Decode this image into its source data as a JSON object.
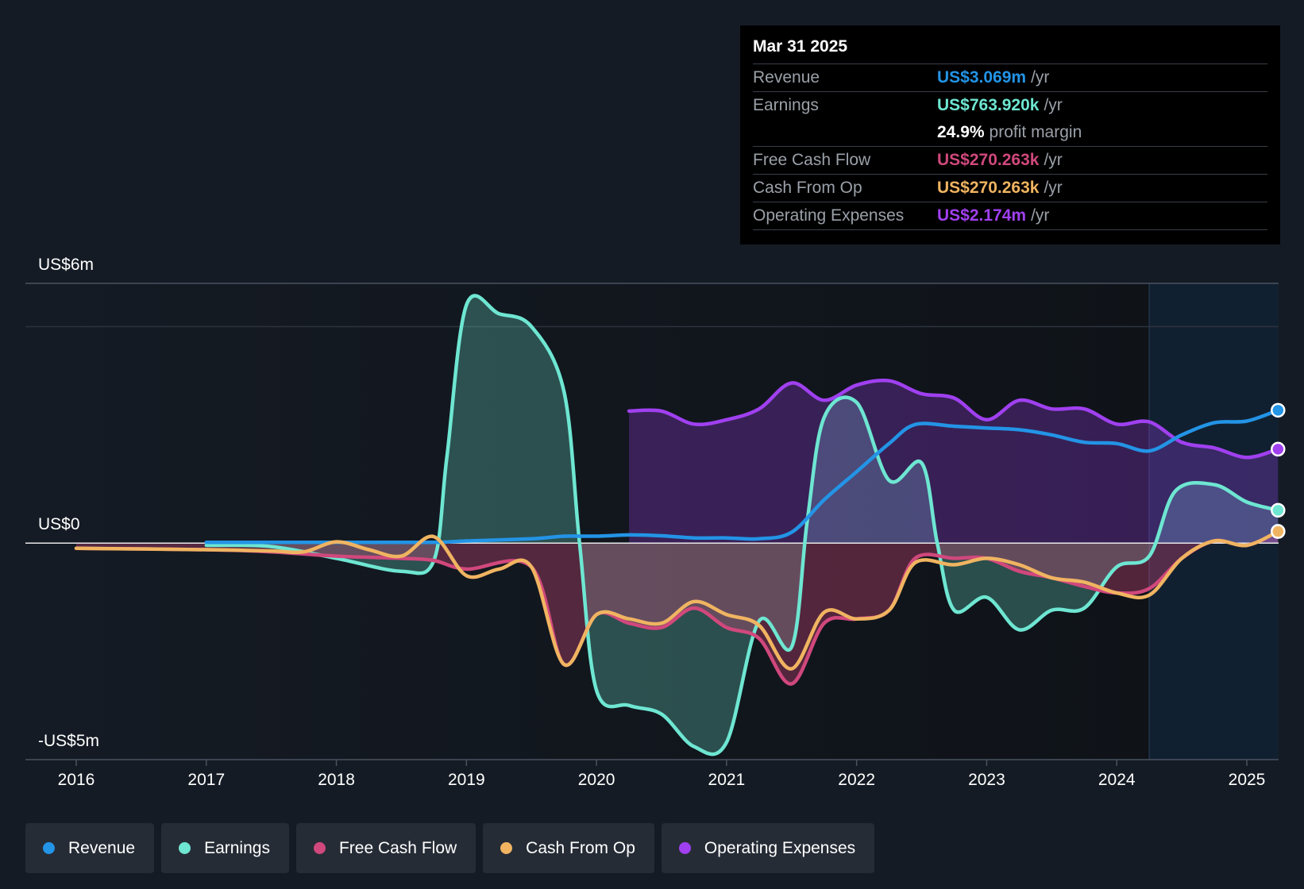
{
  "colors": {
    "revenue": "#2394e6",
    "earnings": "#6ee6d2",
    "free_cash_flow": "#d0487c",
    "cash_from_op": "#f0b461",
    "operating_expenses": "#a040f0",
    "background": "#151b24"
  },
  "tooltip": {
    "date": "Mar 31 2025",
    "rows": [
      {
        "label": "Revenue",
        "value": "US$3.069m",
        "unit": "/yr"
      },
      {
        "label": "Earnings",
        "value": "US$763.920k",
        "unit": "/yr"
      },
      {
        "label": "Free Cash Flow",
        "value": "US$270.263k",
        "unit": "/yr"
      },
      {
        "label": "Cash From Op",
        "value": "US$270.263k",
        "unit": "/yr"
      },
      {
        "label": "Operating Expenses",
        "value": "US$2.174m",
        "unit": "/yr"
      }
    ],
    "margin_value": "24.9%",
    "margin_label": "profit margin"
  },
  "legend": [
    {
      "label": "Revenue",
      "color": "#2394e6"
    },
    {
      "label": "Earnings",
      "color": "#6ee6d2"
    },
    {
      "label": "Free Cash Flow",
      "color": "#d0487c"
    },
    {
      "label": "Cash From Op",
      "color": "#f0b461"
    },
    {
      "label": "Operating Expenses",
      "color": "#a040f0"
    }
  ],
  "chart_data": {
    "type": "area",
    "x_label_ticks": [
      "2016",
      "2017",
      "2018",
      "2019",
      "2020",
      "2021",
      "2022",
      "2023",
      "2024",
      "2025"
    ],
    "y_labels": {
      "top": "US$6m",
      "zero": "US$0",
      "bottom": "-US$5m"
    },
    "ylim": [
      -5,
      6
    ],
    "xlim": [
      2015.62,
      2025.24
    ],
    "forecast_start": 2024.25,
    "series": [
      {
        "name": "Revenue",
        "key": "revenue",
        "color": "#2394e6",
        "fill": false,
        "points": [
          [
            2017,
            0.02
          ],
          [
            2018,
            0.02
          ],
          [
            2018.75,
            0.02
          ],
          [
            2019,
            0.05
          ],
          [
            2019.5,
            0.1
          ],
          [
            2019.75,
            0.16
          ],
          [
            2020,
            0.16
          ],
          [
            2020.25,
            0.19
          ],
          [
            2020.5,
            0.17
          ],
          [
            2020.75,
            0.12
          ],
          [
            2021,
            0.12
          ],
          [
            2021.25,
            0.1
          ],
          [
            2021.5,
            0.25
          ],
          [
            2021.75,
            1.0
          ],
          [
            2022,
            1.65
          ],
          [
            2022.25,
            2.3
          ],
          [
            2022.45,
            2.74
          ],
          [
            2022.75,
            2.7
          ],
          [
            2023,
            2.66
          ],
          [
            2023.25,
            2.62
          ],
          [
            2023.5,
            2.5
          ],
          [
            2023.75,
            2.33
          ],
          [
            2024,
            2.3
          ],
          [
            2024.25,
            2.13
          ],
          [
            2024.5,
            2.5
          ],
          [
            2024.75,
            2.78
          ],
          [
            2025,
            2.82
          ],
          [
            2025.24,
            3.07
          ]
        ]
      },
      {
        "name": "Earnings",
        "key": "earnings",
        "color": "#6ee6d2",
        "fill": true,
        "points": [
          [
            2017,
            -0.05
          ],
          [
            2017.5,
            -0.08
          ],
          [
            2018,
            -0.35
          ],
          [
            2018.5,
            -0.65
          ],
          [
            2018.75,
            -0.4
          ],
          [
            2018.85,
            2.0
          ],
          [
            2019,
            5.5
          ],
          [
            2019.25,
            5.3
          ],
          [
            2019.5,
            5.0
          ],
          [
            2019.75,
            3.5
          ],
          [
            2019.87,
            0.0
          ],
          [
            2020,
            -3.4
          ],
          [
            2020.25,
            -3.75
          ],
          [
            2020.5,
            -3.95
          ],
          [
            2020.75,
            -4.7
          ],
          [
            2021,
            -4.6
          ],
          [
            2021.25,
            -1.8
          ],
          [
            2021.5,
            -2.4
          ],
          [
            2021.62,
            0.5
          ],
          [
            2021.75,
            2.9
          ],
          [
            2022,
            3.25
          ],
          [
            2022.25,
            1.45
          ],
          [
            2022.5,
            1.85
          ],
          [
            2022.62,
            0.0
          ],
          [
            2022.75,
            -1.55
          ],
          [
            2023,
            -1.25
          ],
          [
            2023.25,
            -2.0
          ],
          [
            2023.5,
            -1.55
          ],
          [
            2023.75,
            -1.5
          ],
          [
            2024,
            -0.55
          ],
          [
            2024.25,
            -0.3
          ],
          [
            2024.45,
            1.2
          ],
          [
            2024.75,
            1.35
          ],
          [
            2025,
            0.95
          ],
          [
            2025.24,
            0.76
          ]
        ]
      },
      {
        "name": "Free Cash Flow",
        "key": "free_cash_flow",
        "color": "#d0487c",
        "fill": true,
        "points": [
          [
            2016,
            -0.12
          ],
          [
            2017,
            -0.15
          ],
          [
            2017.5,
            -0.2
          ],
          [
            2018,
            -0.3
          ],
          [
            2018.5,
            -0.35
          ],
          [
            2018.75,
            -0.4
          ],
          [
            2019,
            -0.6
          ],
          [
            2019.5,
            -0.55
          ],
          [
            2019.75,
            -2.8
          ],
          [
            2020,
            -1.65
          ],
          [
            2020.25,
            -1.85
          ],
          [
            2020.5,
            -1.95
          ],
          [
            2020.75,
            -1.5
          ],
          [
            2021,
            -1.95
          ],
          [
            2021.25,
            -2.2
          ],
          [
            2021.5,
            -3.25
          ],
          [
            2021.75,
            -1.85
          ],
          [
            2022,
            -1.75
          ],
          [
            2022.25,
            -1.55
          ],
          [
            2022.45,
            -0.35
          ],
          [
            2022.75,
            -0.35
          ],
          [
            2023,
            -0.35
          ],
          [
            2023.25,
            -0.65
          ],
          [
            2023.5,
            -0.8
          ],
          [
            2023.75,
            -1.0
          ],
          [
            2024,
            -1.15
          ],
          [
            2024.25,
            -1.05
          ],
          [
            2024.5,
            -0.35
          ],
          [
            2024.75,
            0.05
          ],
          [
            2025,
            -0.05
          ],
          [
            2025.24,
            0.27
          ]
        ]
      },
      {
        "name": "Cash From Op",
        "key": "cash_from_op",
        "color": "#f0b461",
        "fill": false,
        "points": [
          [
            2016,
            -0.12
          ],
          [
            2017,
            -0.15
          ],
          [
            2017.5,
            -0.18
          ],
          [
            2017.75,
            -0.2
          ],
          [
            2018,
            0.03
          ],
          [
            2018.25,
            -0.15
          ],
          [
            2018.5,
            -0.3
          ],
          [
            2018.75,
            0.15
          ],
          [
            2019,
            -0.75
          ],
          [
            2019.25,
            -0.6
          ],
          [
            2019.5,
            -0.55
          ],
          [
            2019.75,
            -2.8
          ],
          [
            2020,
            -1.65
          ],
          [
            2020.25,
            -1.75
          ],
          [
            2020.5,
            -1.85
          ],
          [
            2020.75,
            -1.35
          ],
          [
            2021,
            -1.65
          ],
          [
            2021.25,
            -1.9
          ],
          [
            2021.5,
            -2.9
          ],
          [
            2021.75,
            -1.6
          ],
          [
            2022,
            -1.75
          ],
          [
            2022.25,
            -1.55
          ],
          [
            2022.45,
            -0.45
          ],
          [
            2022.75,
            -0.5
          ],
          [
            2023,
            -0.35
          ],
          [
            2023.25,
            -0.5
          ],
          [
            2023.5,
            -0.8
          ],
          [
            2023.75,
            -0.9
          ],
          [
            2024,
            -1.15
          ],
          [
            2024.25,
            -1.2
          ],
          [
            2024.5,
            -0.35
          ],
          [
            2024.75,
            0.05
          ],
          [
            2025,
            -0.05
          ],
          [
            2025.24,
            0.27
          ]
        ]
      },
      {
        "name": "Operating Expenses",
        "key": "operating_expenses",
        "color": "#a040f0",
        "fill": true,
        "points": [
          [
            2020.25,
            3.05
          ],
          [
            2020.5,
            3.05
          ],
          [
            2020.75,
            2.75
          ],
          [
            2021,
            2.85
          ],
          [
            2021.25,
            3.1
          ],
          [
            2021.5,
            3.7
          ],
          [
            2021.75,
            3.3
          ],
          [
            2022,
            3.65
          ],
          [
            2022.25,
            3.75
          ],
          [
            2022.5,
            3.45
          ],
          [
            2022.75,
            3.35
          ],
          [
            2023,
            2.85
          ],
          [
            2023.25,
            3.3
          ],
          [
            2023.5,
            3.1
          ],
          [
            2023.75,
            3.1
          ],
          [
            2024,
            2.75
          ],
          [
            2024.25,
            2.8
          ],
          [
            2024.5,
            2.33
          ],
          [
            2024.75,
            2.2
          ],
          [
            2025,
            1.98
          ],
          [
            2025.24,
            2.17
          ]
        ]
      }
    ]
  }
}
